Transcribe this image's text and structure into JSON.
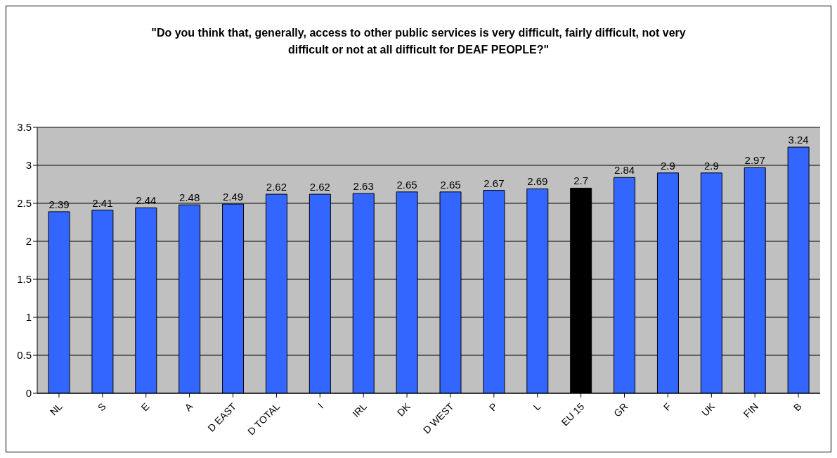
{
  "chart_data": {
    "type": "bar",
    "title": "\"Do you think that, generally, access to other public services is very difficult, fairly difficult, not very difficult or not at all difficult for DEAF PEOPLE?\"",
    "categories": [
      "NL",
      "S",
      "E",
      "A",
      "D EAST",
      "D TOTAL",
      "I",
      "IRL",
      "DK",
      "D WEST",
      "P",
      "L",
      "EU 15",
      "GR",
      "F",
      "UK",
      "FIN",
      "B"
    ],
    "values": [
      2.39,
      2.41,
      2.44,
      2.48,
      2.49,
      2.62,
      2.62,
      2.63,
      2.65,
      2.65,
      2.67,
      2.69,
      2.7,
      2.84,
      2.9,
      2.9,
      2.97,
      3.24
    ],
    "colors": [
      "#3366ff",
      "#3366ff",
      "#3366ff",
      "#3366ff",
      "#3366ff",
      "#3366ff",
      "#3366ff",
      "#3366ff",
      "#3366ff",
      "#3366ff",
      "#3366ff",
      "#3366ff",
      "#000000",
      "#3366ff",
      "#3366ff",
      "#3366ff",
      "#3366ff",
      "#3366ff"
    ],
    "ylim": [
      0,
      3.5
    ],
    "yticks": [
      0,
      0.5,
      1,
      1.5,
      2,
      2.5,
      3,
      3.5
    ],
    "grid": "y",
    "data_labels": true
  }
}
